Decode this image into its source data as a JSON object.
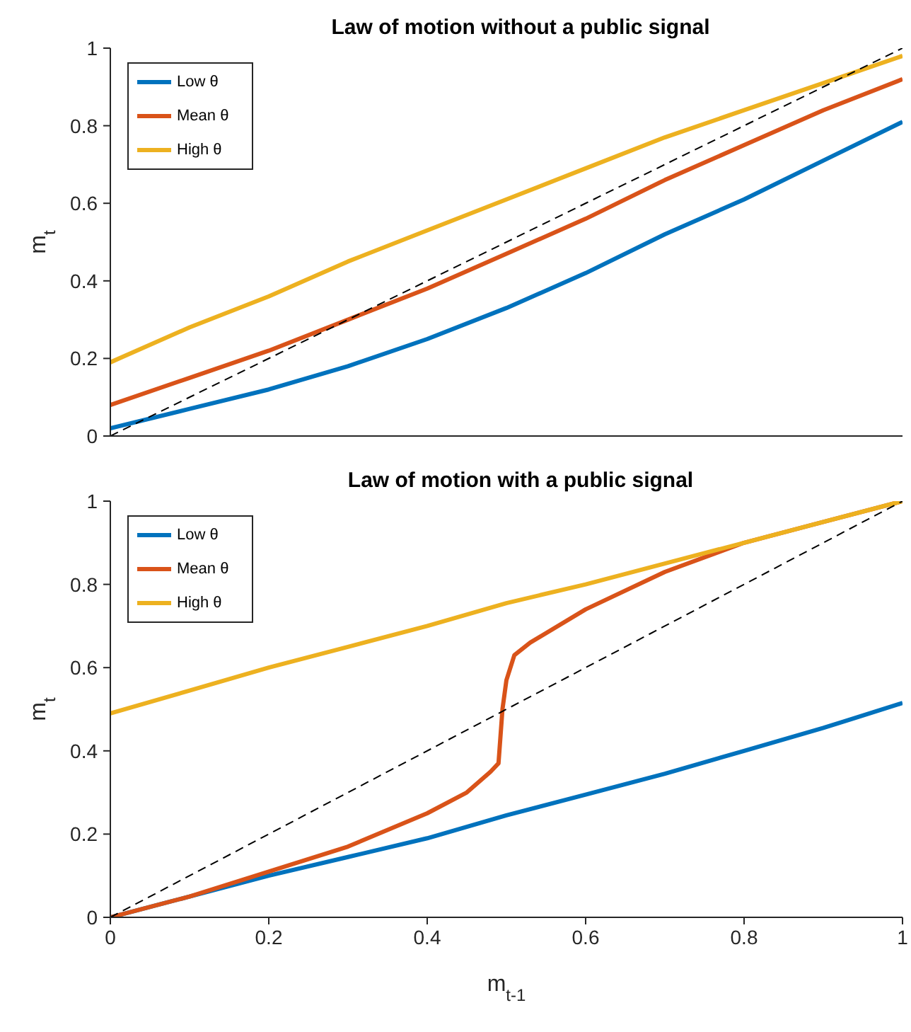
{
  "chart_data": [
    {
      "type": "line",
      "title": "Law of motion without a public signal",
      "ylabel": "m$_{t}$",
      "x": [
        0,
        0.1,
        0.2,
        0.3,
        0.4,
        0.5,
        0.6,
        0.7,
        0.8,
        0.9,
        1
      ],
      "xlim": [
        0,
        1
      ],
      "ylim": [
        0,
        1
      ],
      "yticks": [
        0,
        0.2,
        0.4,
        0.6,
        0.8,
        1
      ],
      "xticks": [
        0,
        0.2,
        0.4,
        0.6,
        0.8,
        1
      ],
      "tick_labels": "y",
      "legend": "top left",
      "grid": false,
      "series": [
        {
          "name": "Low θ",
          "color": "#0072bd",
          "values": [
            0.02,
            0.07,
            0.12,
            0.18,
            0.25,
            0.33,
            0.42,
            0.52,
            0.61,
            0.71,
            0.81
          ]
        },
        {
          "name": "Mean θ",
          "color": "#d95319",
          "values": [
            0.08,
            0.15,
            0.22,
            0.3,
            0.38,
            0.47,
            0.56,
            0.66,
            0.75,
            0.84,
            0.92
          ]
        },
        {
          "name": "High θ",
          "color": "#edb120",
          "values": [
            0.19,
            0.28,
            0.36,
            0.45,
            0.53,
            0.61,
            0.69,
            0.77,
            0.84,
            0.91,
            0.98
          ]
        },
        {
          "color": "#000000",
          "line_style": "dashed",
          "x": [
            0,
            1
          ],
          "values": [
            0,
            1
          ]
        }
      ]
    },
    {
      "type": "line",
      "title": "Law of motion with a public signal",
      "xlabel": "m$_{t-1}$",
      "ylabel": "m$_{t}$",
      "x": [
        0,
        0.1,
        0.2,
        0.3,
        0.4,
        0.5,
        0.6,
        0.7,
        0.8,
        0.9,
        1
      ],
      "xlim": [
        0,
        1
      ],
      "ylim": [
        0,
        1
      ],
      "xticks": [
        0,
        0.2,
        0.4,
        0.6,
        0.8,
        1
      ],
      "yticks": [
        0,
        0.2,
        0.4,
        0.6,
        0.8,
        1
      ],
      "legend": "top left",
      "grid": false,
      "series": [
        {
          "name": "Low θ",
          "color": "#0072bd",
          "values": [
            0,
            0.05,
            0.1,
            0.145,
            0.19,
            0.245,
            0.295,
            0.345,
            0.4,
            0.455,
            0.515
          ]
        },
        {
          "name": "Mean θ",
          "color": "#d95319",
          "x": [
            0,
            0.1,
            0.2,
            0.3,
            0.4,
            0.45,
            0.48,
            0.49,
            0.495,
            0.5,
            0.51,
            0.53,
            0.6,
            0.7,
            0.8,
            0.9,
            1
          ],
          "values": [
            0,
            0.05,
            0.11,
            0.17,
            0.25,
            0.3,
            0.35,
            0.37,
            0.5,
            0.57,
            0.63,
            0.66,
            0.74,
            0.83,
            0.9,
            0.95,
            1
          ]
        },
        {
          "name": "High θ",
          "color": "#edb120",
          "values": [
            0.49,
            0.545,
            0.6,
            0.65,
            0.7,
            0.755,
            0.8,
            0.85,
            0.9,
            0.95,
            1
          ]
        },
        {
          "color": "#000000",
          "line_style": "dashed",
          "x": [
            0,
            1
          ],
          "values": [
            0,
            1
          ]
        }
      ]
    }
  ]
}
